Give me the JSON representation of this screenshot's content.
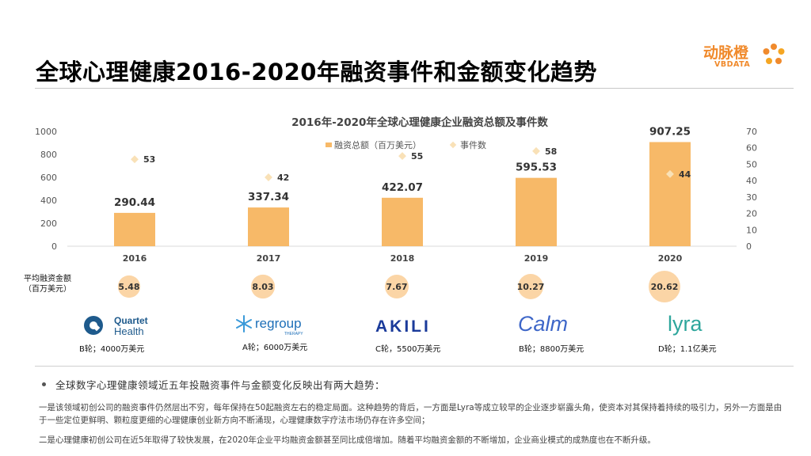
{
  "page": {
    "title": "全球心理健康2016-2020年融资事件和金额变化趋势",
    "logo": {
      "cn": "动脉橙",
      "en": "VBDATA"
    }
  },
  "chart_data": {
    "type": "bar",
    "title": "2016年-2020年全球心理健康企业融资总额及事件数",
    "categories": [
      "2016",
      "2017",
      "2018",
      "2019",
      "2020"
    ],
    "series": [
      {
        "name": "融资总额（百万美元）",
        "kind": "bar",
        "axis": "left",
        "values": [
          290.44,
          337.34,
          422.07,
          595.53,
          907.25
        ],
        "color": "#f7b968"
      },
      {
        "name": "事件数",
        "kind": "scatter",
        "axis": "right",
        "values": [
          53,
          42,
          55,
          58,
          44
        ],
        "color": "#f9e1b7"
      }
    ],
    "y_left": {
      "min": 0,
      "max": 1000,
      "ticks": [
        "0",
        "200",
        "400",
        "600",
        "800",
        "1000"
      ]
    },
    "y_right": {
      "min": 0,
      "max": 70,
      "ticks": [
        "0",
        "10",
        "20",
        "30",
        "40",
        "50",
        "60",
        "70"
      ]
    },
    "legend": "top-center",
    "grid": false
  },
  "average": {
    "label": "平均融资金额（百万美元）",
    "label_lines": [
      "平均融资金额",
      "（百万美元）"
    ],
    "values": [
      "5.48",
      "8.03",
      "7.67",
      "10.27",
      "20.62"
    ],
    "relative": [
      5.48,
      8.03,
      7.67,
      10.27,
      20.62
    ],
    "color": "#fbd5a6"
  },
  "companies": [
    {
      "name_line1": "Quartet",
      "name_line2": "Health",
      "round": "B轮；4000万美元",
      "color": "#1e5a8c"
    },
    {
      "name_line1": "regroup",
      "name_line2": "THERAPY",
      "round": "A轮；6000万美元",
      "color": "#1d6fb8"
    },
    {
      "name_line1": "AKILI",
      "round": "C轮，5500万美元",
      "color": "#1a3a9a"
    },
    {
      "name_line1": "Calm",
      "round": "B轮；8800万美元",
      "color": "#3d66c8"
    },
    {
      "name_line1": "lyra",
      "round": "D轮；1.1亿美元",
      "color": "#2ea69c"
    }
  ],
  "summary": {
    "headline": "全球数字心理健康领域近五年投融资事件与金额变化反映出有两大趋势：",
    "para1": "一是该领域初创公司的融资事件仍然层出不穷，每年保持在50起融资左右的稳定局面。这种趋势的背后，一方面是Lyra等成立较早的企业逐步崭露头角，使资本对其保持着持续的吸引力，另外一方面是由于一些定位更鲜明、颗粒度更细的心理健康创业新方向不断涌现，心理健康数字疗法市场仍存在许多空间；",
    "para2": "二是心理健康初创公司在近5年取得了较快发展，在2020年企业平均融资金额甚至同比成倍增加。随着平均融资金额的不断增加，企业商业模式的成熟度也在不断升级。"
  }
}
